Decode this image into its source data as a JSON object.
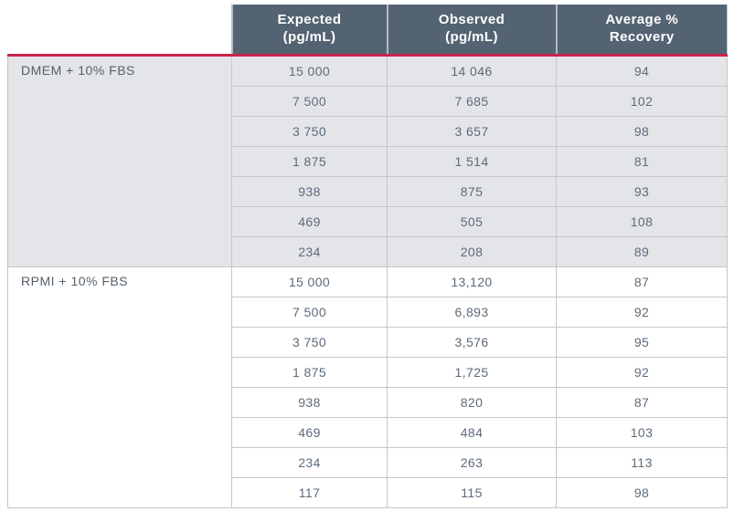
{
  "page": {
    "background": "#ffffff"
  },
  "table": {
    "accent_color": "#c9234a",
    "header_bg": "#546372",
    "header_text_color": "#ffffff",
    "shaded_group_bg": "#e4e5e8",
    "plain_group_bg": "#ffffff",
    "border_color": "#c3c6cb",
    "cell_text_color": "#5d6b7b",
    "headers": {
      "corner": "",
      "expected": "Expected\n(pg/mL)",
      "observed": "Observed\n(pg/mL)",
      "recovery": "Average %\nRecovery"
    },
    "groups": [
      {
        "label": "DMEM + 10% FBS",
        "shaded": true,
        "rows": [
          [
            "15 000",
            "14 046",
            "94"
          ],
          [
            "7 500",
            "7 685",
            "102"
          ],
          [
            "3 750",
            "3 657",
            "98"
          ],
          [
            "1 875",
            "1 514",
            "81"
          ],
          [
            "938",
            "875",
            "93"
          ],
          [
            "469",
            "505",
            "108"
          ],
          [
            "234",
            "208",
            "89"
          ]
        ]
      },
      {
        "label": "RPMI + 10% FBS",
        "shaded": false,
        "rows": [
          [
            "15 000",
            "13,120",
            "87"
          ],
          [
            "7 500",
            "6,893",
            "92"
          ],
          [
            "3 750",
            "3,576",
            "95"
          ],
          [
            "1 875",
            "1,725",
            "92"
          ],
          [
            "938",
            "820",
            "87"
          ],
          [
            "469",
            "484",
            "103"
          ],
          [
            "234",
            "263",
            "113"
          ],
          [
            "117",
            "115",
            "98"
          ]
        ]
      }
    ]
  }
}
